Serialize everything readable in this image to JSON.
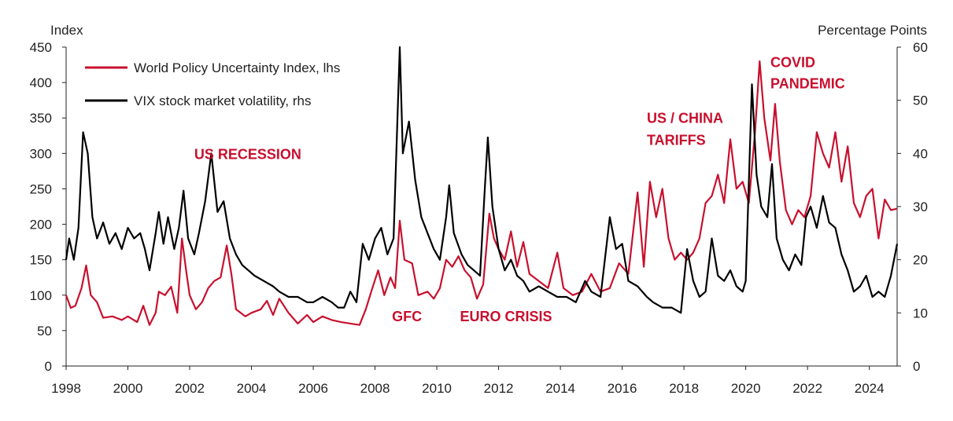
{
  "colors": {
    "wpui": "#c8102e",
    "vix": "#000000",
    "axis": "#222222",
    "annotation": "#c8102e"
  },
  "chart_data": {
    "type": "line",
    "title": "",
    "y_left": {
      "label": "Index",
      "min": 0,
      "max": 450,
      "ticks": [
        0,
        50,
        100,
        150,
        200,
        250,
        300,
        350,
        400,
        450
      ]
    },
    "y_right": {
      "label": "Percentage Points",
      "min": 0,
      "max": 60,
      "ticks": [
        0,
        10,
        20,
        30,
        40,
        50,
        60
      ]
    },
    "x_axis": {
      "min": 1998,
      "max": 2024.9,
      "ticks": [
        1998,
        2000,
        2002,
        2004,
        2006,
        2008,
        2010,
        2012,
        2014,
        2016,
        2018,
        2020,
        2022,
        2024
      ]
    },
    "grid": false,
    "legend": {
      "placement": "top-left"
    },
    "series": [
      {
        "name": "World Policy Uncertainty Index, lhs",
        "axis": "left",
        "color": "#c8102e",
        "points": [
          [
            1998.0,
            100
          ],
          [
            1998.15,
            82
          ],
          [
            1998.3,
            85
          ],
          [
            1998.5,
            110
          ],
          [
            1998.65,
            142
          ],
          [
            1998.8,
            100
          ],
          [
            1999.0,
            90
          ],
          [
            1999.2,
            68
          ],
          [
            1999.5,
            70
          ],
          [
            1999.8,
            65
          ],
          [
            2000.0,
            70
          ],
          [
            2000.3,
            62
          ],
          [
            2000.5,
            85
          ],
          [
            2000.7,
            58
          ],
          [
            2000.9,
            75
          ],
          [
            2001.0,
            105
          ],
          [
            2001.2,
            100
          ],
          [
            2001.4,
            112
          ],
          [
            2001.6,
            75
          ],
          [
            2001.75,
            180
          ],
          [
            2001.9,
            130
          ],
          [
            2002.0,
            100
          ],
          [
            2002.2,
            80
          ],
          [
            2002.4,
            90
          ],
          [
            2002.6,
            110
          ],
          [
            2002.8,
            120
          ],
          [
            2003.0,
            125
          ],
          [
            2003.2,
            170
          ],
          [
            2003.35,
            130
          ],
          [
            2003.5,
            80
          ],
          [
            2003.8,
            70
          ],
          [
            2004.0,
            75
          ],
          [
            2004.3,
            80
          ],
          [
            2004.5,
            92
          ],
          [
            2004.7,
            72
          ],
          [
            2004.9,
            95
          ],
          [
            2005.2,
            75
          ],
          [
            2005.5,
            60
          ],
          [
            2005.8,
            72
          ],
          [
            2006.0,
            62
          ],
          [
            2006.3,
            70
          ],
          [
            2006.6,
            65
          ],
          [
            2006.9,
            62
          ],
          [
            2007.2,
            60
          ],
          [
            2007.5,
            58
          ],
          [
            2007.7,
            80
          ],
          [
            2007.9,
            108
          ],
          [
            2008.1,
            135
          ],
          [
            2008.3,
            100
          ],
          [
            2008.5,
            125
          ],
          [
            2008.65,
            110
          ],
          [
            2008.8,
            205
          ],
          [
            2008.95,
            150
          ],
          [
            2009.2,
            145
          ],
          [
            2009.4,
            100
          ],
          [
            2009.7,
            105
          ],
          [
            2009.9,
            95
          ],
          [
            2010.1,
            110
          ],
          [
            2010.3,
            150
          ],
          [
            2010.5,
            140
          ],
          [
            2010.7,
            155
          ],
          [
            2010.9,
            135
          ],
          [
            2011.1,
            125
          ],
          [
            2011.3,
            95
          ],
          [
            2011.5,
            115
          ],
          [
            2011.7,
            215
          ],
          [
            2011.85,
            180
          ],
          [
            2012.0,
            165
          ],
          [
            2012.2,
            150
          ],
          [
            2012.4,
            190
          ],
          [
            2012.6,
            140
          ],
          [
            2012.8,
            175
          ],
          [
            2013.0,
            130
          ],
          [
            2013.3,
            120
          ],
          [
            2013.6,
            110
          ],
          [
            2013.9,
            160
          ],
          [
            2014.1,
            110
          ],
          [
            2014.4,
            100
          ],
          [
            2014.7,
            105
          ],
          [
            2015.0,
            130
          ],
          [
            2015.3,
            105
          ],
          [
            2015.6,
            110
          ],
          [
            2015.9,
            145
          ],
          [
            2016.2,
            130
          ],
          [
            2016.5,
            245
          ],
          [
            2016.7,
            140
          ],
          [
            2016.9,
            260
          ],
          [
            2017.1,
            210
          ],
          [
            2017.3,
            250
          ],
          [
            2017.5,
            180
          ],
          [
            2017.7,
            150
          ],
          [
            2017.9,
            160
          ],
          [
            2018.1,
            150
          ],
          [
            2018.3,
            160
          ],
          [
            2018.5,
            180
          ],
          [
            2018.7,
            230
          ],
          [
            2018.9,
            240
          ],
          [
            2019.1,
            270
          ],
          [
            2019.3,
            230
          ],
          [
            2019.5,
            320
          ],
          [
            2019.7,
            250
          ],
          [
            2019.9,
            260
          ],
          [
            2020.1,
            230
          ],
          [
            2020.3,
            330
          ],
          [
            2020.45,
            430
          ],
          [
            2020.6,
            350
          ],
          [
            2020.8,
            290
          ],
          [
            2020.95,
            370
          ],
          [
            2021.1,
            290
          ],
          [
            2021.3,
            220
          ],
          [
            2021.5,
            200
          ],
          [
            2021.7,
            220
          ],
          [
            2021.9,
            210
          ],
          [
            2022.1,
            240
          ],
          [
            2022.3,
            330
          ],
          [
            2022.5,
            300
          ],
          [
            2022.7,
            280
          ],
          [
            2022.9,
            330
          ],
          [
            2023.1,
            260
          ],
          [
            2023.3,
            310
          ],
          [
            2023.5,
            230
          ],
          [
            2023.7,
            210
          ],
          [
            2023.9,
            240
          ],
          [
            2024.1,
            250
          ],
          [
            2024.3,
            180
          ],
          [
            2024.5,
            235
          ],
          [
            2024.7,
            220
          ],
          [
            2024.9,
            222
          ]
        ]
      },
      {
        "name": "VIX stock market volatility, rhs",
        "axis": "right",
        "color": "#000000",
        "points": [
          [
            1998.0,
            20
          ],
          [
            1998.1,
            24
          ],
          [
            1998.25,
            20
          ],
          [
            1998.4,
            26
          ],
          [
            1998.55,
            44
          ],
          [
            1998.7,
            40
          ],
          [
            1998.85,
            28
          ],
          [
            1999.0,
            24
          ],
          [
            1999.2,
            27
          ],
          [
            1999.4,
            23
          ],
          [
            1999.6,
            25
          ],
          [
            1999.8,
            22
          ],
          [
            2000.0,
            26
          ],
          [
            2000.2,
            24
          ],
          [
            2000.4,
            25
          ],
          [
            2000.55,
            22
          ],
          [
            2000.7,
            18
          ],
          [
            2000.9,
            25
          ],
          [
            2001.0,
            29
          ],
          [
            2001.15,
            23
          ],
          [
            2001.3,
            28
          ],
          [
            2001.5,
            22
          ],
          [
            2001.65,
            26
          ],
          [
            2001.8,
            33
          ],
          [
            2001.95,
            24
          ],
          [
            2002.15,
            21
          ],
          [
            2002.3,
            25
          ],
          [
            2002.5,
            31
          ],
          [
            2002.7,
            40
          ],
          [
            2002.9,
            29
          ],
          [
            2003.1,
            31
          ],
          [
            2003.3,
            24
          ],
          [
            2003.5,
            21
          ],
          [
            2003.7,
            19
          ],
          [
            2003.9,
            18
          ],
          [
            2004.1,
            17
          ],
          [
            2004.4,
            16
          ],
          [
            2004.7,
            15
          ],
          [
            2004.9,
            14
          ],
          [
            2005.2,
            13
          ],
          [
            2005.5,
            13
          ],
          [
            2005.8,
            12
          ],
          [
            2006.0,
            12
          ],
          [
            2006.3,
            13
          ],
          [
            2006.6,
            12
          ],
          [
            2006.8,
            11
          ],
          [
            2007.0,
            11
          ],
          [
            2007.2,
            14
          ],
          [
            2007.4,
            12
          ],
          [
            2007.6,
            23
          ],
          [
            2007.8,
            20
          ],
          [
            2008.0,
            24
          ],
          [
            2008.2,
            26
          ],
          [
            2008.4,
            21
          ],
          [
            2008.6,
            24
          ],
          [
            2008.8,
            60
          ],
          [
            2008.9,
            40
          ],
          [
            2009.1,
            46
          ],
          [
            2009.3,
            35
          ],
          [
            2009.5,
            28
          ],
          [
            2009.7,
            25
          ],
          [
            2009.9,
            22
          ],
          [
            2010.1,
            20
          ],
          [
            2010.3,
            28
          ],
          [
            2010.4,
            34
          ],
          [
            2010.55,
            25
          ],
          [
            2010.8,
            21
          ],
          [
            2011.0,
            19
          ],
          [
            2011.2,
            18
          ],
          [
            2011.4,
            17
          ],
          [
            2011.55,
            33
          ],
          [
            2011.65,
            43
          ],
          [
            2011.8,
            30
          ],
          [
            2012.0,
            22
          ],
          [
            2012.2,
            18
          ],
          [
            2012.4,
            20
          ],
          [
            2012.6,
            17
          ],
          [
            2012.8,
            16
          ],
          [
            2013.0,
            14
          ],
          [
            2013.3,
            15
          ],
          [
            2013.6,
            14
          ],
          [
            2013.9,
            13
          ],
          [
            2014.2,
            13
          ],
          [
            2014.5,
            12
          ],
          [
            2014.8,
            16
          ],
          [
            2015.0,
            14
          ],
          [
            2015.3,
            13
          ],
          [
            2015.6,
            28
          ],
          [
            2015.8,
            22
          ],
          [
            2016.0,
            23
          ],
          [
            2016.2,
            16
          ],
          [
            2016.5,
            15
          ],
          [
            2016.8,
            13
          ],
          [
            2017.0,
            12
          ],
          [
            2017.3,
            11
          ],
          [
            2017.6,
            11
          ],
          [
            2017.9,
            10
          ],
          [
            2018.1,
            22
          ],
          [
            2018.3,
            16
          ],
          [
            2018.5,
            13
          ],
          [
            2018.7,
            14
          ],
          [
            2018.9,
            24
          ],
          [
            2019.1,
            17
          ],
          [
            2019.3,
            16
          ],
          [
            2019.5,
            18
          ],
          [
            2019.7,
            15
          ],
          [
            2019.9,
            14
          ],
          [
            2020.0,
            16
          ],
          [
            2020.2,
            53
          ],
          [
            2020.35,
            36
          ],
          [
            2020.5,
            30
          ],
          [
            2020.7,
            28
          ],
          [
            2020.85,
            38
          ],
          [
            2021.0,
            24
          ],
          [
            2021.2,
            20
          ],
          [
            2021.4,
            18
          ],
          [
            2021.6,
            21
          ],
          [
            2021.8,
            19
          ],
          [
            2021.95,
            28
          ],
          [
            2022.1,
            30
          ],
          [
            2022.3,
            26
          ],
          [
            2022.5,
            32
          ],
          [
            2022.7,
            27
          ],
          [
            2022.9,
            26
          ],
          [
            2023.1,
            21
          ],
          [
            2023.3,
            18
          ],
          [
            2023.5,
            14
          ],
          [
            2023.7,
            15
          ],
          [
            2023.9,
            17
          ],
          [
            2024.1,
            13
          ],
          [
            2024.3,
            14
          ],
          [
            2024.5,
            13
          ],
          [
            2024.7,
            17
          ],
          [
            2024.9,
            23
          ]
        ]
      }
    ],
    "annotations": [
      {
        "text": "US RECESSION",
        "x": 2002.15,
        "y": 292
      },
      {
        "text": "GFC",
        "x": 2008.55,
        "y": 63
      },
      {
        "text": "EURO CRISIS",
        "x": 2010.75,
        "y": 63
      },
      {
        "text": "US / CHINA",
        "x": 2016.8,
        "y": 343
      },
      {
        "text": "TARIFFS",
        "x": 2016.8,
        "y": 312
      },
      {
        "text": "COVID",
        "x": 2020.8,
        "y": 422
      },
      {
        "text": "PANDEMIC",
        "x": 2020.8,
        "y": 392
      }
    ]
  }
}
